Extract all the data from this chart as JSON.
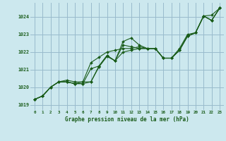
{
  "title": "",
  "xlabel": "Graphe pression niveau de la mer (hPa)",
  "ylabel": "",
  "bg_color": "#cce8ee",
  "grid_color": "#99bbcc",
  "line_color": "#1a5c1a",
  "text_color": "#1a5c1a",
  "xlim": [
    -0.5,
    23.5
  ],
  "ylim": [
    1018.7,
    1024.8
  ],
  "xticks": [
    0,
    1,
    2,
    3,
    4,
    5,
    6,
    7,
    8,
    9,
    10,
    11,
    12,
    13,
    14,
    15,
    16,
    17,
    18,
    19,
    20,
    21,
    22,
    23
  ],
  "yticks": [
    1019,
    1020,
    1021,
    1022,
    1023,
    1024
  ],
  "series1": [
    1019.3,
    1019.5,
    1020.0,
    1020.3,
    1020.3,
    1020.2,
    1020.3,
    1020.3,
    1021.2,
    1021.8,
    1021.5,
    1022.6,
    1022.8,
    1022.4,
    1022.2,
    1022.2,
    1021.65,
    1021.65,
    1022.1,
    1022.9,
    1023.1,
    1024.05,
    1024.1,
    1024.5
  ],
  "series2": [
    1019.3,
    1019.5,
    1020.0,
    1020.3,
    1020.3,
    1020.2,
    1020.2,
    1021.05,
    1021.2,
    1021.8,
    1021.5,
    1022.4,
    1022.3,
    1022.2,
    1022.2,
    1022.2,
    1021.65,
    1021.65,
    1022.1,
    1022.9,
    1023.1,
    1024.05,
    1023.8,
    1024.5
  ],
  "series3": [
    1019.3,
    1019.5,
    1020.0,
    1020.3,
    1020.3,
    1020.2,
    1020.2,
    1020.3,
    1021.15,
    1021.75,
    1021.5,
    1022.0,
    1022.1,
    1022.2,
    1022.2,
    1022.2,
    1021.65,
    1021.65,
    1022.1,
    1022.9,
    1023.1,
    1024.05,
    1023.8,
    1024.5
  ],
  "series4": [
    1019.3,
    1019.5,
    1020.0,
    1020.3,
    1020.4,
    1020.3,
    1020.3,
    1021.4,
    1021.7,
    1022.0,
    1022.1,
    1022.2,
    1022.2,
    1022.3,
    1022.2,
    1022.2,
    1021.65,
    1021.65,
    1022.2,
    1023.0,
    1023.1,
    1024.05,
    1023.8,
    1024.5
  ],
  "lw": 0.8,
  "ms": 2.0
}
